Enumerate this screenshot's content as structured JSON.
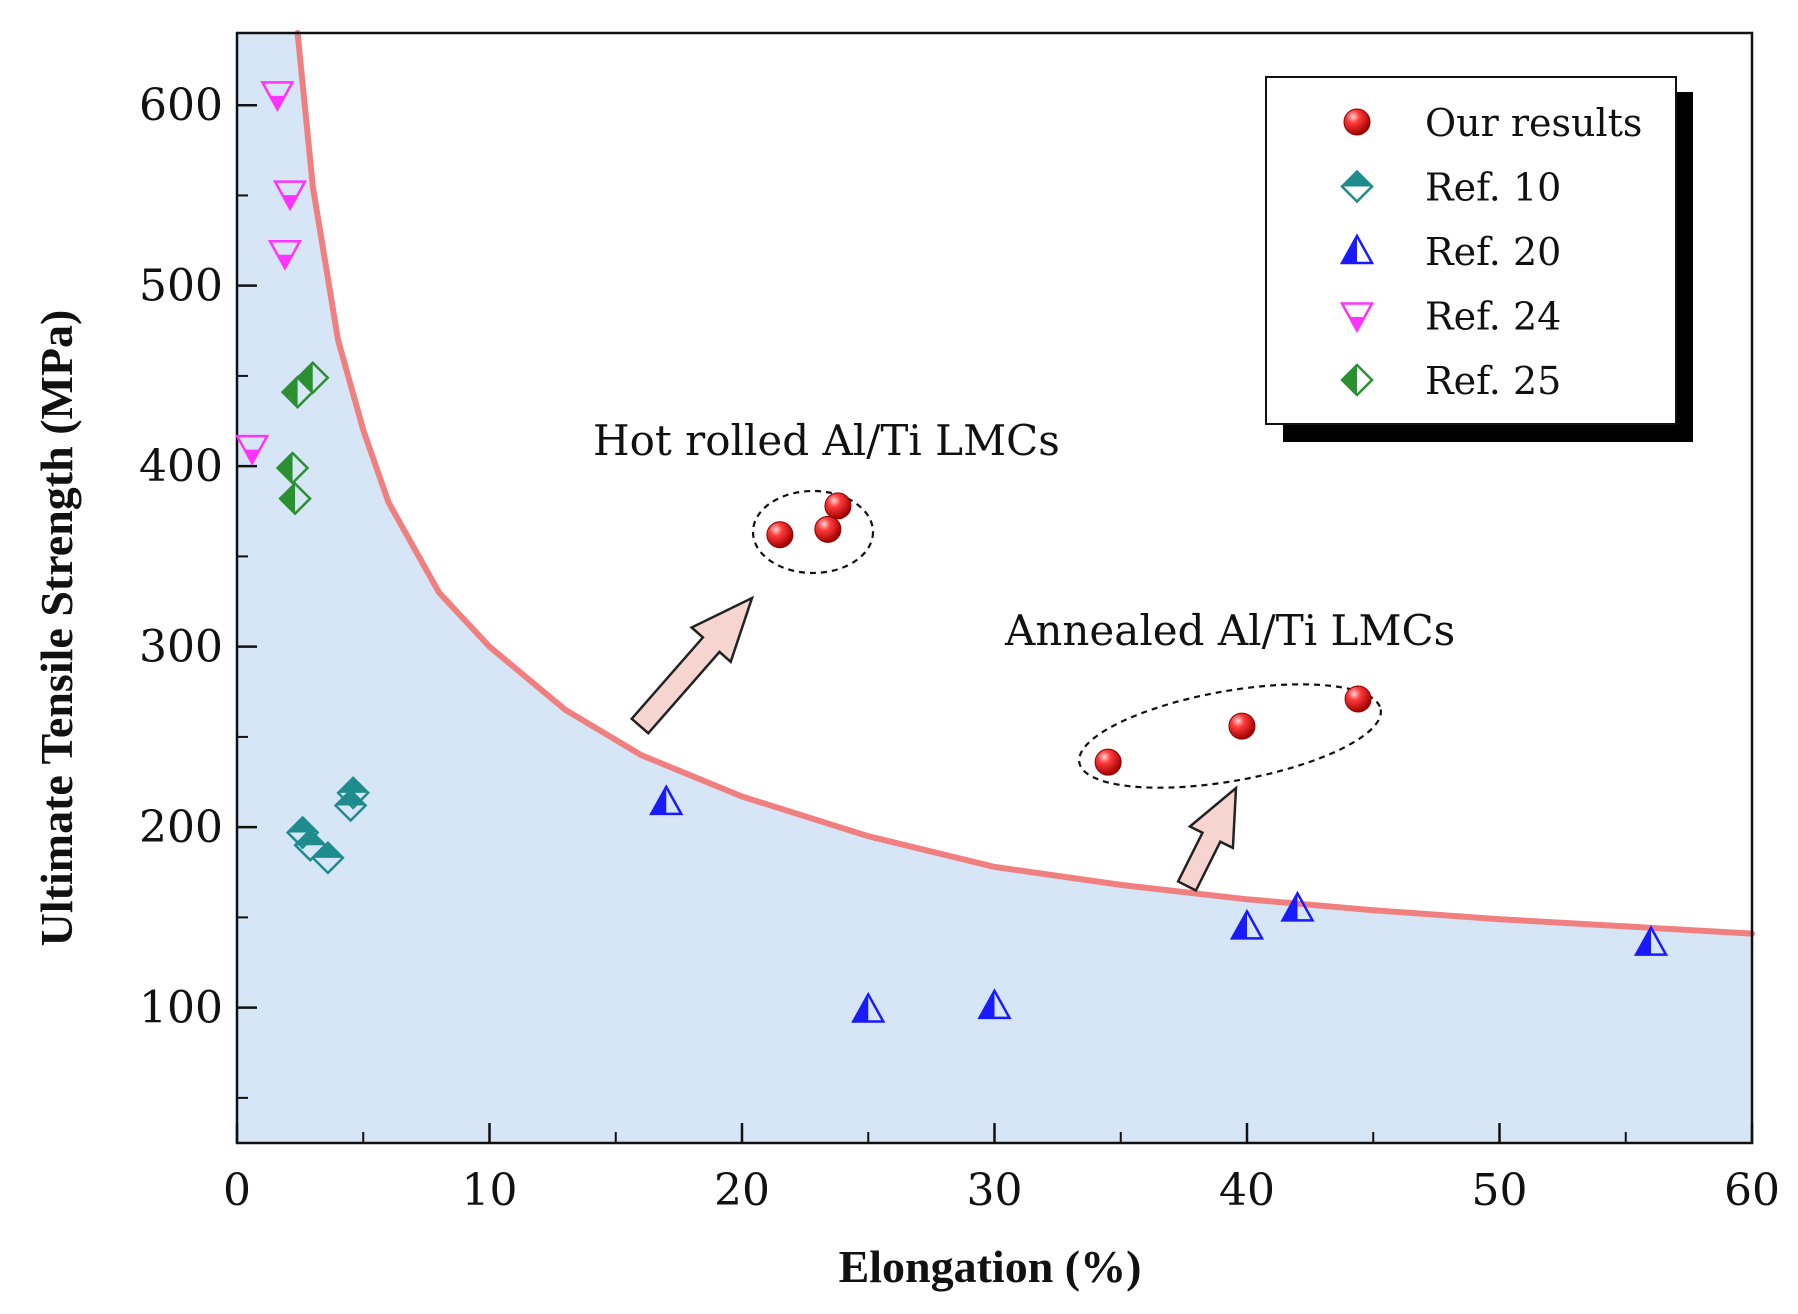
{
  "chart_data": {
    "type": "scatter",
    "title": "",
    "xlabel": "Elongation (%)",
    "ylabel": "Ultimate Tensile Strength (MPa)",
    "xlim": [
      0,
      60
    ],
    "ylim": [
      25,
      640
    ],
    "xticks": [
      0,
      10,
      20,
      30,
      40,
      50,
      60
    ],
    "xtick_labels": [
      "0",
      "10",
      "20",
      "30",
      "40",
      "50",
      "60"
    ],
    "yticks": [
      100,
      200,
      300,
      400,
      500,
      600
    ],
    "ytick_labels": [
      "100",
      "200",
      "300",
      "400",
      "500",
      "600"
    ],
    "grid": false,
    "legend_position": "top-right",
    "series": [
      {
        "name": "Our results",
        "marker": "sphere",
        "color": "#e8201f",
        "points": [
          [
            21.5,
            362
          ],
          [
            23.4,
            365
          ],
          [
            23.8,
            378
          ],
          [
            34.5,
            236
          ],
          [
            39.8,
            256
          ],
          [
            44.4,
            271
          ]
        ]
      },
      {
        "name": "Ref. 10",
        "marker": "half-diamond",
        "color": "#1e8c8c",
        "points": [
          [
            2.6,
            197
          ],
          [
            2.9,
            190
          ],
          [
            3.6,
            183
          ],
          [
            4.5,
            212
          ],
          [
            4.6,
            219
          ]
        ]
      },
      {
        "name": "Ref. 20",
        "marker": "half-triangle",
        "color": "#1a1aff",
        "points": [
          [
            17.0,
            214
          ],
          [
            25.0,
            99
          ],
          [
            30.0,
            101
          ],
          [
            40.0,
            145
          ],
          [
            42.0,
            155
          ],
          [
            56.0,
            136
          ]
        ]
      },
      {
        "name": "Ref. 24",
        "marker": "half-triangle-down",
        "color": "#ff33ff",
        "points": [
          [
            1.6,
            606
          ],
          [
            2.1,
            551
          ],
          [
            1.9,
            518
          ],
          [
            0.6,
            410
          ]
        ]
      },
      {
        "name": "Ref. 25",
        "marker": "half-diamond-vertical",
        "color": "#2a9030",
        "points": [
          [
            2.4,
            441
          ],
          [
            3.0,
            449
          ],
          [
            2.2,
            399
          ],
          [
            2.3,
            382
          ]
        ]
      }
    ],
    "boundary_curve": {
      "color": "#f08080",
      "points": [
        [
          2.4,
          640
        ],
        [
          3,
          555
        ],
        [
          4,
          470
        ],
        [
          5,
          420
        ],
        [
          6,
          380
        ],
        [
          8,
          330
        ],
        [
          10,
          300
        ],
        [
          13,
          265
        ],
        [
          16,
          240
        ],
        [
          20,
          217
        ],
        [
          25,
          195
        ],
        [
          30,
          178
        ],
        [
          35,
          168
        ],
        [
          40,
          160
        ],
        [
          45,
          154
        ],
        [
          50,
          149
        ],
        [
          55,
          145
        ],
        [
          60,
          141
        ]
      ]
    },
    "shaded_region": {
      "color": "#d6e6f7",
      "description": "below boundary curve"
    },
    "annotations": [
      {
        "text": "Hot rolled Al/Ti LMCs",
        "encircles_points_x": [
          21.5,
          23.4,
          23.8
        ]
      },
      {
        "text": "Annealed Al/Ti LMCs",
        "encircles_points_x": [
          34.5,
          39.8,
          44.4
        ]
      }
    ]
  }
}
